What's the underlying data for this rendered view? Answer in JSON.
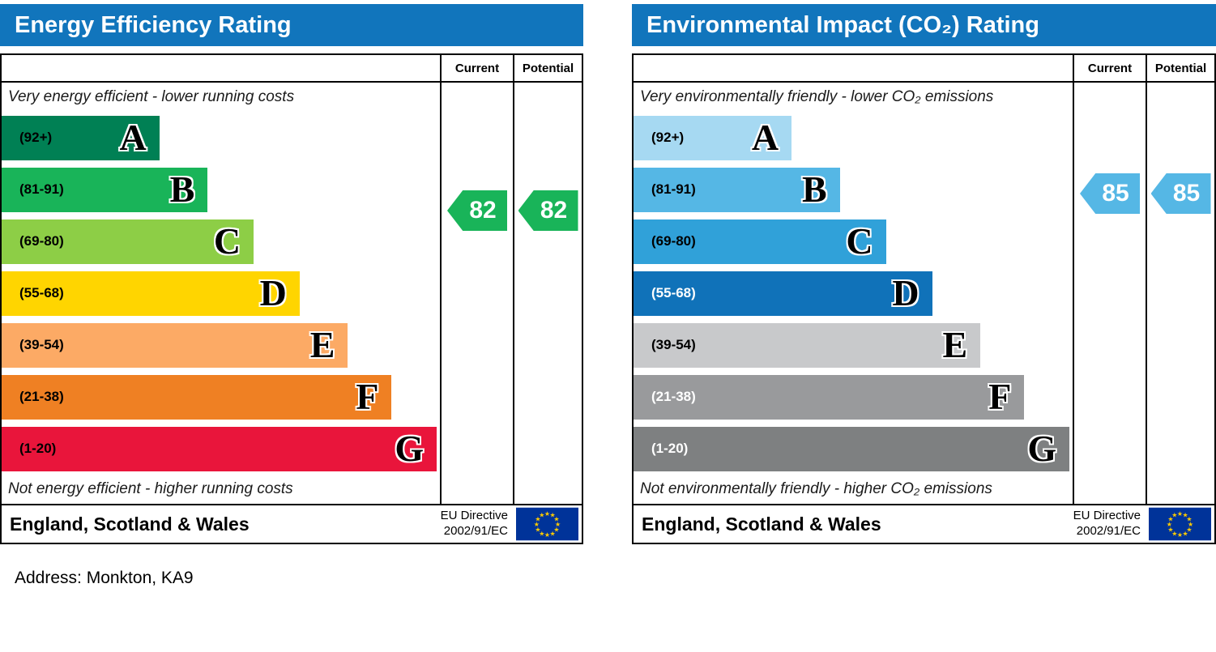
{
  "address_line": "Address: Monkton, KA9",
  "panels": [
    {
      "title": "Energy Efficiency Rating",
      "col_current": "Current",
      "col_potential": "Potential",
      "top_note": "Very energy efficient - lower running costs",
      "bottom_note": "Not energy efficient - higher running costs",
      "footer_region": "England, Scotland & Wales",
      "eu_directive_line1": "EU Directive",
      "eu_directive_line2": "2002/91/EC",
      "bands": [
        {
          "letter": "A",
          "range": "(92+)",
          "color": "#008054",
          "label_color": "#000000",
          "width_pct": 36
        },
        {
          "letter": "B",
          "range": "(81-91)",
          "color": "#19b459",
          "label_color": "#000000",
          "width_pct": 47
        },
        {
          "letter": "C",
          "range": "(69-80)",
          "color": "#8dce46",
          "label_color": "#000000",
          "width_pct": 57.5
        },
        {
          "letter": "D",
          "range": "(55-68)",
          "color": "#ffd500",
          "label_color": "#000000",
          "width_pct": 68
        },
        {
          "letter": "E",
          "range": "(39-54)",
          "color": "#fcaa65",
          "label_color": "#000000",
          "width_pct": 79
        },
        {
          "letter": "F",
          "range": "(21-38)",
          "color": "#ef8023",
          "label_color": "#000000",
          "width_pct": 89
        },
        {
          "letter": "G",
          "range": "(1-20)",
          "color": "#e9153b",
          "label_color": "#000000",
          "width_pct": 99.3
        }
      ],
      "current": {
        "value": "82",
        "band": "B",
        "color": "#19b459"
      },
      "potential": {
        "value": "82",
        "band": "B",
        "color": "#19b459"
      }
    },
    {
      "title": "Environmental Impact (CO₂) Rating",
      "col_current": "Current",
      "col_potential": "Potential",
      "top_note": "Very environmentally friendly - lower CO₂ emissions",
      "bottom_note": "Not environmentally friendly - higher CO₂ emissions",
      "footer_region": "England, Scotland & Wales",
      "eu_directive_line1": "EU Directive",
      "eu_directive_line2": "2002/91/EC",
      "bands": [
        {
          "letter": "A",
          "range": "(92+)",
          "color": "#a6d9f2",
          "label_color": "#000000",
          "width_pct": 36
        },
        {
          "letter": "B",
          "range": "(81-91)",
          "color": "#55b7e5",
          "label_color": "#000000",
          "width_pct": 47
        },
        {
          "letter": "C",
          "range": "(69-80)",
          "color": "#30a1d9",
          "label_color": "#000000",
          "width_pct": 57.5
        },
        {
          "letter": "D",
          "range": "(55-68)",
          "color": "#1072b9",
          "label_color": "#ffffff",
          "width_pct": 68
        },
        {
          "letter": "E",
          "range": "(39-54)",
          "color": "#c8c9cb",
          "label_color": "#000000",
          "width_pct": 79
        },
        {
          "letter": "F",
          "range": "(21-38)",
          "color": "#999a9c",
          "label_color": "#ffffff",
          "width_pct": 89
        },
        {
          "letter": "G",
          "range": "(1-20)",
          "color": "#7e8081",
          "label_color": "#ffffff",
          "width_pct": 99.3
        }
      ],
      "current": {
        "value": "85",
        "band": "B",
        "color": "#55b7e5"
      },
      "potential": {
        "value": "85",
        "band": "B",
        "color": "#55b7e5"
      }
    }
  ],
  "chart_data": [
    {
      "type": "bar",
      "title": "Energy Efficiency Rating",
      "categories": [
        "A (92+)",
        "B (81-91)",
        "C (69-80)",
        "D (55-68)",
        "E (39-54)",
        "F (21-38)",
        "G (1-20)"
      ],
      "values": [
        36,
        47,
        57.5,
        68,
        79,
        89,
        99.3
      ],
      "values_note": "bar lengths as % of band column width (decorative EPC scale)",
      "band_colors": [
        "#008054",
        "#19b459",
        "#8dce46",
        "#ffd500",
        "#fcaa65",
        "#ef8023",
        "#e9153b"
      ],
      "current_rating": 82,
      "potential_rating": 82,
      "current_band": "B",
      "potential_band": "B",
      "legend": [
        "Current",
        "Potential"
      ],
      "annotations": [
        "Very energy efficient - lower running costs",
        "Not energy efficient - higher running costs",
        "England, Scotland & Wales",
        "EU Directive 2002/91/EC"
      ]
    },
    {
      "type": "bar",
      "title": "Environmental Impact (CO₂) Rating",
      "categories": [
        "A (92+)",
        "B (81-91)",
        "C (69-80)",
        "D (55-68)",
        "E (39-54)",
        "F (21-38)",
        "G (1-20)"
      ],
      "values": [
        36,
        47,
        57.5,
        68,
        79,
        89,
        99.3
      ],
      "values_note": "bar lengths as % of band column width (decorative EPC scale)",
      "band_colors": [
        "#a6d9f2",
        "#55b7e5",
        "#30a1d9",
        "#1072b9",
        "#c8c9cb",
        "#999a9c",
        "#7e8081"
      ],
      "current_rating": 85,
      "potential_rating": 85,
      "current_band": "B",
      "potential_band": "B",
      "legend": [
        "Current",
        "Potential"
      ],
      "annotations": [
        "Very environmentally friendly - lower CO₂ emissions",
        "Not environmentally friendly - higher CO₂ emissions",
        "England, Scotland & Wales",
        "EU Directive 2002/91/EC"
      ]
    }
  ]
}
